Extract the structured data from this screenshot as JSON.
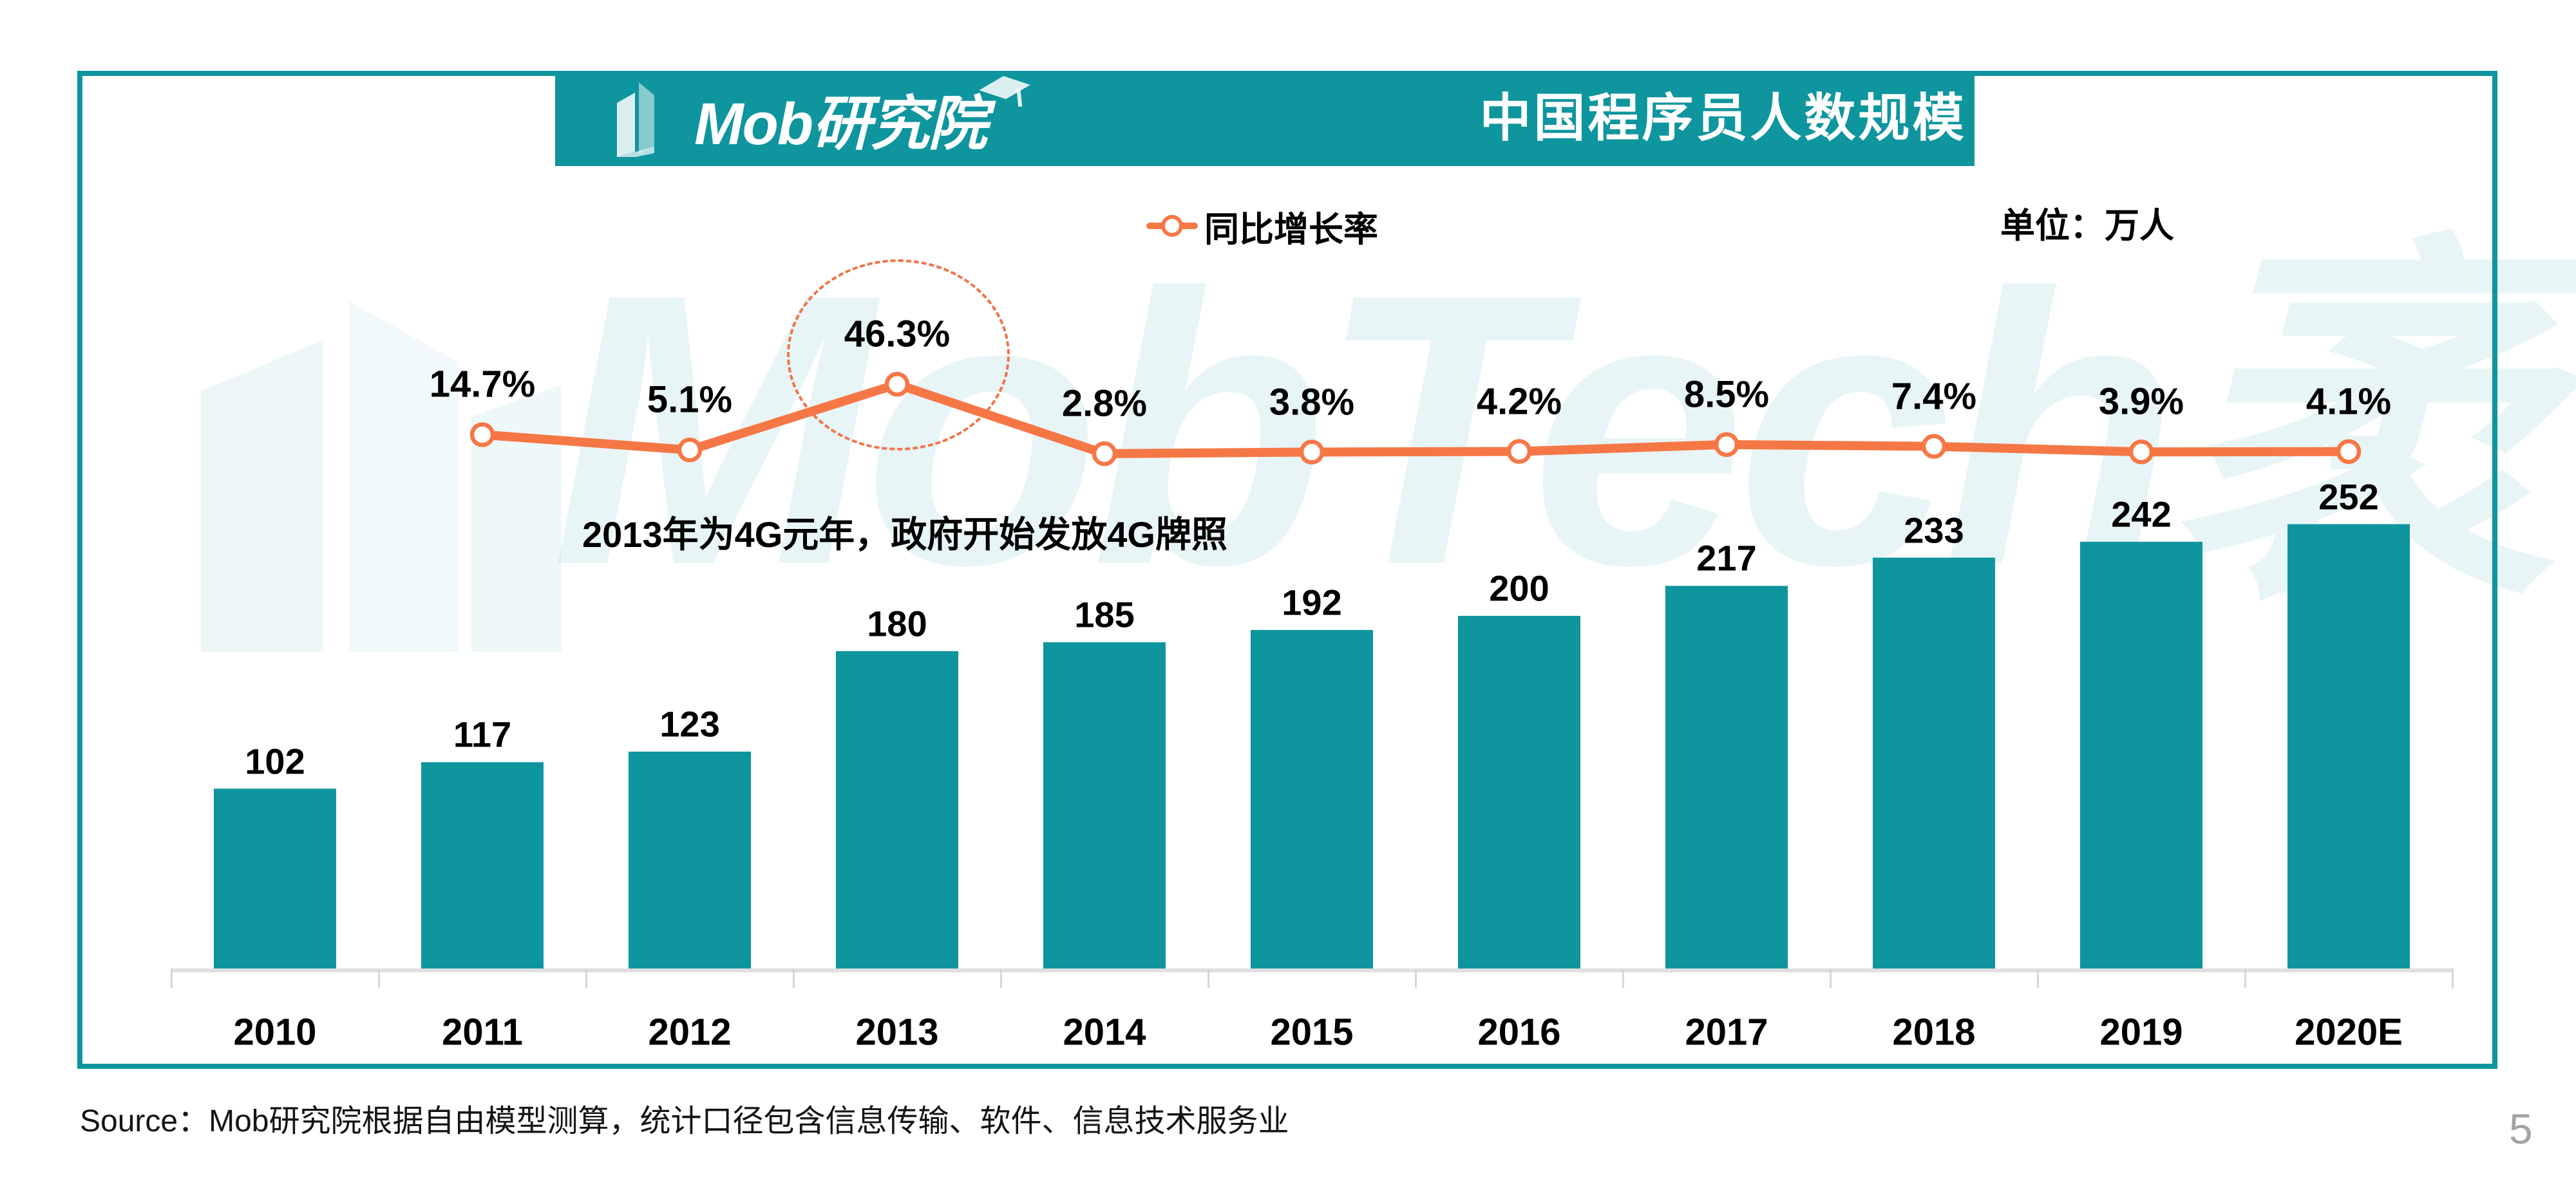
{
  "header": {
    "logo_text": "Mob研究院",
    "title": "中国程序员人数规模"
  },
  "legend": {
    "growth_label": "同比增长率"
  },
  "unit_label": "单位：万人",
  "annotation": "2013年为4G元年，政府开始发放4G牌照",
  "watermark": {
    "text": "MobTech袤博"
  },
  "source": "Source：Mob研究院根据自由模型测算，统计口径包含信息传输、软件、信息技术服务业",
  "page_number": "5",
  "colors": {
    "teal": "#0E959E",
    "orange": "#F67746",
    "ellipse": "#F2744B",
    "axis": "#DFDFDF",
    "tick": "#D6D6D6",
    "page_number": "#A3A3A3"
  },
  "chart_data": {
    "type": "bar",
    "title": "中国程序员人数规模",
    "unit": "万人",
    "xlabel": "",
    "ylabel": "",
    "grid": false,
    "legend_position": "top-center",
    "categories": [
      "2010",
      "2011",
      "2012",
      "2013",
      "2014",
      "2015",
      "2016",
      "2017",
      "2018",
      "2019",
      "2020E"
    ],
    "bar_series": {
      "values": [
        102,
        117,
        123,
        180,
        185,
        192,
        200,
        217,
        233,
        242,
        252
      ]
    },
    "line_series": {
      "name": "同比增长率",
      "type": "line",
      "start_category": "2011",
      "values_pct": [
        14.7,
        5.1,
        46.3,
        2.8,
        3.8,
        4.2,
        8.5,
        7.4,
        3.9,
        4.1
      ],
      "labels": [
        "14.7%",
        "5.1%",
        "46.3%",
        "2.8%",
        "3.8%",
        "4.2%",
        "8.5%",
        "7.4%",
        "3.9%",
        "4.1%"
      ],
      "highlighted_label": "46.3%"
    }
  }
}
